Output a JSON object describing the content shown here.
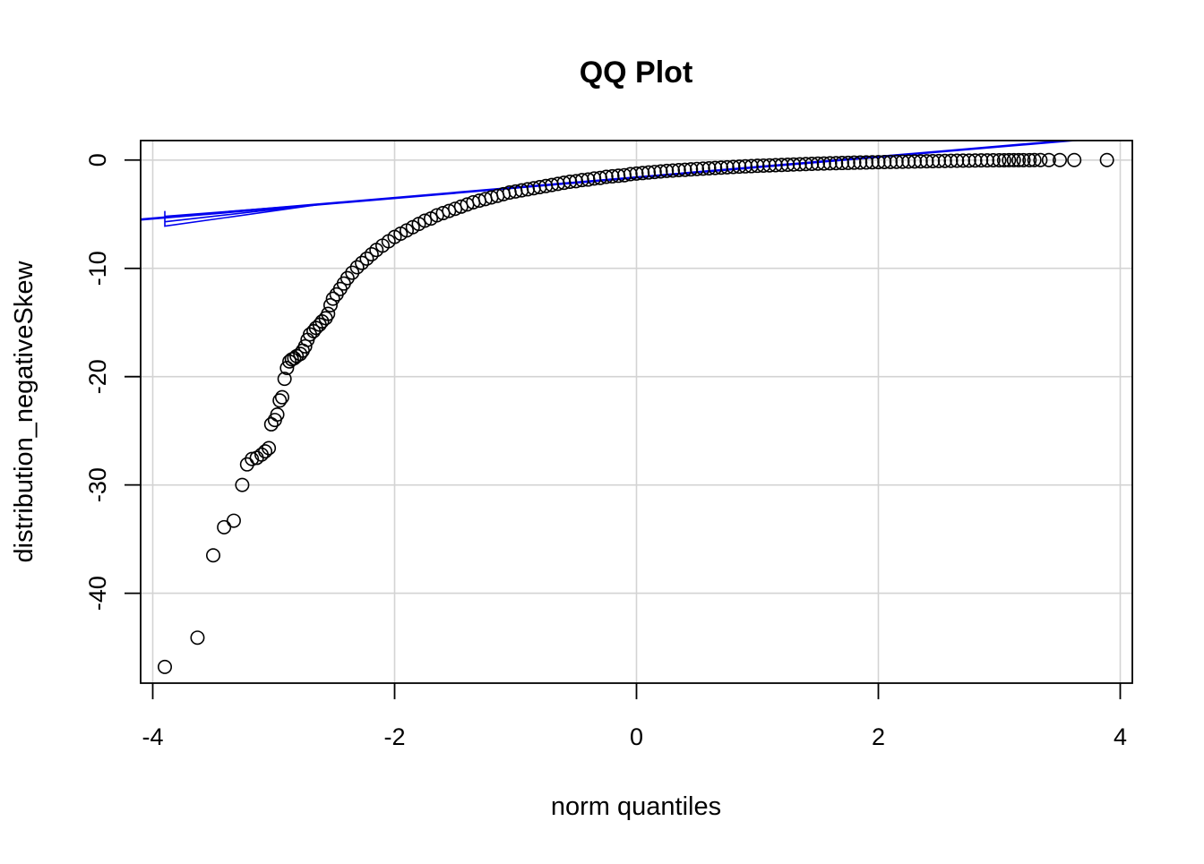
{
  "chart_data": {
    "type": "scatter",
    "title": "QQ Plot",
    "xlabel": "norm quantiles",
    "ylabel": "distribution_negativeSkew",
    "xlim": [
      -4.1,
      4.1
    ],
    "ylim": [
      -48.3,
      1.8
    ],
    "xticks": [
      -4,
      -2,
      0,
      2,
      4
    ],
    "yticks": [
      0,
      -10,
      -20,
      -30,
      -40
    ],
    "grid": true,
    "reference_line": {
      "slope": 0.95,
      "intercept": -1.6,
      "color": "#0000ee"
    },
    "confidence_band": {
      "color": "#0000ee",
      "x": [
        -3.9,
        -3.9
      ],
      "lower": [
        -6.1,
        -5.7
      ],
      "upper": [
        -4.7,
        -5.2
      ]
    },
    "series": [
      {
        "points": [
          [
            -3.9,
            -46.8
          ],
          [
            -3.63,
            -44.1
          ],
          [
            -3.5,
            -36.5
          ],
          [
            -3.41,
            -33.9
          ],
          [
            -3.33,
            -33.3
          ],
          [
            -3.26,
            -30.0
          ],
          [
            -3.22,
            -28.1
          ],
          [
            -3.18,
            -27.6
          ],
          [
            -3.14,
            -27.5
          ],
          [
            -3.1,
            -27.2
          ],
          [
            -3.07,
            -26.9
          ],
          [
            -3.04,
            -26.6
          ],
          [
            -3.02,
            -24.4
          ],
          [
            -2.99,
            -24.0
          ],
          [
            -2.97,
            -23.5
          ],
          [
            -2.95,
            -22.2
          ],
          [
            -2.93,
            -21.9
          ],
          [
            -2.91,
            -20.2
          ],
          [
            -2.89,
            -19.2
          ],
          [
            -2.87,
            -18.6
          ],
          [
            -2.85,
            -18.4
          ],
          [
            -2.83,
            -18.3
          ],
          [
            -2.81,
            -18.1
          ],
          [
            -2.78,
            -17.9
          ],
          [
            -2.76,
            -17.6
          ],
          [
            -2.74,
            -17.2
          ],
          [
            -2.72,
            -16.6
          ],
          [
            -2.7,
            -16.1
          ],
          [
            -2.67,
            -15.8
          ],
          [
            -2.65,
            -15.5
          ],
          [
            -2.62,
            -15.2
          ],
          [
            -2.6,
            -14.9
          ],
          [
            -2.57,
            -14.6
          ],
          [
            -2.55,
            -14.2
          ],
          [
            -2.53,
            -13.4
          ],
          [
            -2.51,
            -12.8
          ],
          [
            -2.48,
            -12.4
          ],
          [
            -2.45,
            -11.9
          ],
          [
            -2.42,
            -11.4
          ],
          [
            -2.39,
            -10.9
          ],
          [
            -2.35,
            -10.4
          ],
          [
            -2.31,
            -9.9
          ],
          [
            -2.27,
            -9.5
          ],
          [
            -2.23,
            -9.1
          ],
          [
            -2.19,
            -8.7
          ],
          [
            -2.15,
            -8.3
          ],
          [
            -2.1,
            -7.9
          ],
          [
            -2.05,
            -7.5
          ],
          [
            -2.0,
            -7.1
          ],
          [
            -1.95,
            -6.8
          ],
          [
            -1.9,
            -6.5
          ],
          [
            -1.85,
            -6.2
          ],
          [
            -1.8,
            -5.9
          ],
          [
            -1.75,
            -5.6
          ],
          [
            -1.7,
            -5.4
          ],
          [
            -1.65,
            -5.1
          ],
          [
            -1.6,
            -4.9
          ],
          [
            -1.55,
            -4.7
          ],
          [
            -1.5,
            -4.5
          ],
          [
            -1.45,
            -4.3
          ],
          [
            -1.4,
            -4.1
          ],
          [
            -1.35,
            -3.9
          ],
          [
            -1.3,
            -3.75
          ],
          [
            -1.25,
            -3.6
          ],
          [
            -1.2,
            -3.45
          ],
          [
            -1.15,
            -3.3
          ],
          [
            -1.1,
            -3.15
          ],
          [
            -1.05,
            -3.0
          ],
          [
            -1.0,
            -2.9
          ],
          [
            -0.95,
            -2.8
          ],
          [
            -0.9,
            -2.7
          ],
          [
            -0.85,
            -2.6
          ],
          [
            -0.8,
            -2.5
          ],
          [
            -0.75,
            -2.4
          ],
          [
            -0.7,
            -2.3
          ],
          [
            -0.65,
            -2.2
          ],
          [
            -0.6,
            -2.1
          ],
          [
            -0.55,
            -2.0
          ],
          [
            -0.5,
            -1.95
          ],
          [
            -0.45,
            -1.85
          ],
          [
            -0.4,
            -1.8
          ],
          [
            -0.35,
            -1.7
          ],
          [
            -0.3,
            -1.65
          ],
          [
            -0.25,
            -1.55
          ],
          [
            -0.2,
            -1.5
          ],
          [
            -0.15,
            -1.45
          ],
          [
            -0.1,
            -1.4
          ],
          [
            -0.05,
            -1.3
          ],
          [
            0.0,
            -1.25
          ],
          [
            0.05,
            -1.2
          ],
          [
            0.1,
            -1.15
          ],
          [
            0.15,
            -1.1
          ],
          [
            0.2,
            -1.05
          ],
          [
            0.25,
            -1.0
          ],
          [
            0.3,
            -0.97
          ],
          [
            0.35,
            -0.93
          ],
          [
            0.4,
            -0.9
          ],
          [
            0.45,
            -0.86
          ],
          [
            0.5,
            -0.82
          ],
          [
            0.55,
            -0.79
          ],
          [
            0.6,
            -0.76
          ],
          [
            0.65,
            -0.73
          ],
          [
            0.7,
            -0.7
          ],
          [
            0.75,
            -0.67
          ],
          [
            0.8,
            -0.64
          ],
          [
            0.85,
            -0.61
          ],
          [
            0.9,
            -0.58
          ],
          [
            0.95,
            -0.56
          ],
          [
            1.0,
            -0.53
          ],
          [
            1.05,
            -0.51
          ],
          [
            1.1,
            -0.49
          ],
          [
            1.15,
            -0.47
          ],
          [
            1.2,
            -0.45
          ],
          [
            1.25,
            -0.43
          ],
          [
            1.3,
            -0.41
          ],
          [
            1.35,
            -0.39
          ],
          [
            1.4,
            -0.37
          ],
          [
            1.45,
            -0.35
          ],
          [
            1.5,
            -0.33
          ],
          [
            1.55,
            -0.32
          ],
          [
            1.6,
            -0.3
          ],
          [
            1.65,
            -0.29
          ],
          [
            1.7,
            -0.27
          ],
          [
            1.75,
            -0.26
          ],
          [
            1.8,
            -0.24
          ],
          [
            1.85,
            -0.23
          ],
          [
            1.9,
            -0.22
          ],
          [
            1.95,
            -0.2
          ],
          [
            2.0,
            -0.19
          ],
          [
            2.05,
            -0.18
          ],
          [
            2.1,
            -0.17
          ],
          [
            2.15,
            -0.16
          ],
          [
            2.2,
            -0.15
          ],
          [
            2.25,
            -0.14
          ],
          [
            2.3,
            -0.13
          ],
          [
            2.35,
            -0.12
          ],
          [
            2.4,
            -0.11
          ],
          [
            2.45,
            -0.1
          ],
          [
            2.5,
            -0.09
          ],
          [
            2.55,
            -0.08
          ],
          [
            2.6,
            -0.07
          ],
          [
            2.65,
            -0.06
          ],
          [
            2.7,
            -0.05
          ],
          [
            2.75,
            -0.05
          ],
          [
            2.8,
            -0.04
          ],
          [
            2.85,
            -0.03
          ],
          [
            2.9,
            -0.03
          ],
          [
            2.95,
            -0.02
          ],
          [
            3.0,
            -0.02
          ],
          [
            3.04,
            -0.02
          ],
          [
            3.08,
            -0.01
          ],
          [
            3.12,
            -0.01
          ],
          [
            3.16,
            -0.01
          ],
          [
            3.2,
            -0.01
          ],
          [
            3.25,
            -0.01
          ],
          [
            3.29,
            0.0
          ],
          [
            3.34,
            0.0
          ],
          [
            3.41,
            0.0
          ],
          [
            3.5,
            0.0
          ],
          [
            3.62,
            0.0
          ],
          [
            3.89,
            0.0
          ]
        ]
      }
    ]
  }
}
